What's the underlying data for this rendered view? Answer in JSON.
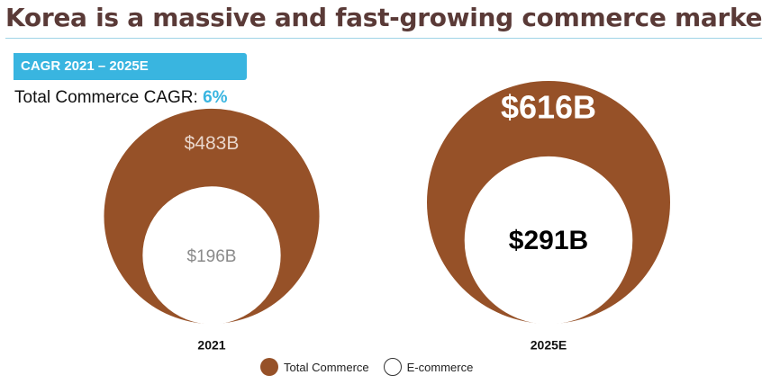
{
  "header": {
    "title": "Korea is a massive and fast-growing commerce market"
  },
  "cagr": {
    "banner": "CAGR 2021 – 2025E",
    "label": "Total Commerce CAGR:",
    "value": "6%"
  },
  "colors": {
    "total": "#965128",
    "ecommerce": "#ffffff",
    "accent": "#39b5e0",
    "title": "#5a3a37"
  },
  "chart_data": {
    "type": "nested-bubble",
    "title": "Korea is a massive and fast-growing commerce market",
    "unit": "USD billions",
    "categories": [
      "2021",
      "2025E"
    ],
    "series": [
      {
        "name": "Total Commerce",
        "values": [
          483,
          616
        ],
        "labels": [
          "$483B",
          "$616B"
        ]
      },
      {
        "name": "E-commerce",
        "values": [
          196,
          291
        ],
        "labels": [
          "$196B",
          "$291B"
        ]
      }
    ],
    "legend": [
      "Total Commerce",
      "E-commerce"
    ],
    "legend_position": "bottom-center"
  }
}
